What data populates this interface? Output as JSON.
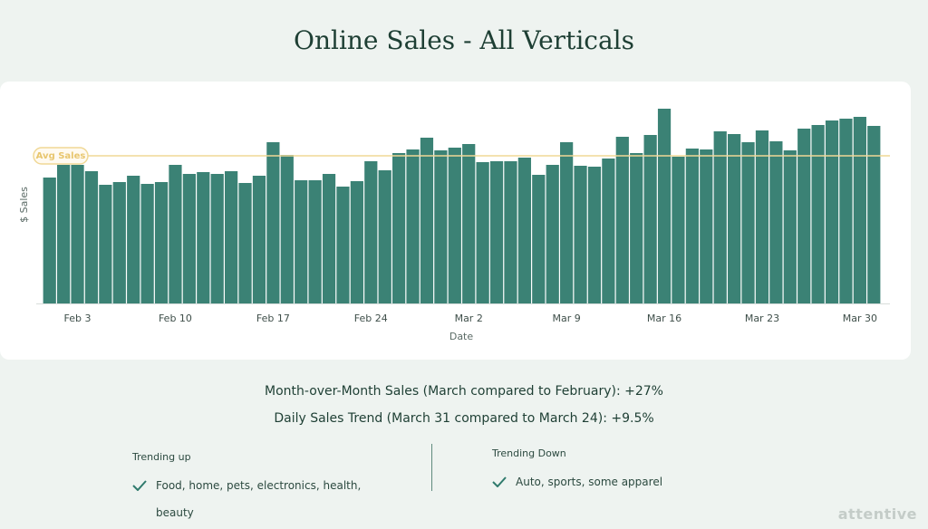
{
  "chart_data": {
    "type": "bar",
    "title": "Online Sales - All Verticals",
    "x_label": "Date",
    "y_label": "$ Sales",
    "color": "#3b8275",
    "categories": [
      null,
      null,
      "Feb 3",
      null,
      null,
      null,
      null,
      null,
      null,
      "Feb 10",
      null,
      null,
      null,
      null,
      null,
      null,
      "Feb 17",
      null,
      null,
      null,
      null,
      null,
      null,
      "Feb 24",
      null,
      null,
      null,
      null,
      null,
      null,
      "Mar 2",
      null,
      null,
      null,
      null,
      null,
      null,
      "Mar 9",
      null,
      null,
      null,
      null,
      null,
      null,
      "Mar 16",
      null,
      null,
      null,
      null,
      null,
      null,
      "Mar 23",
      null,
      null,
      null,
      null,
      null,
      null,
      "Mar 30",
      null
    ],
    "values": [
      139,
      153,
      153,
      146,
      131,
      134,
      141,
      132,
      134,
      153,
      143,
      145,
      143,
      146,
      133,
      141,
      178,
      164,
      136,
      136,
      143,
      129,
      135,
      157,
      147,
      166,
      170,
      183,
      169,
      172,
      176,
      156,
      157,
      157,
      161,
      142,
      153,
      178,
      152,
      151,
      160,
      184,
      166,
      186,
      215,
      162,
      171,
      170,
      190,
      187,
      178,
      191,
      179,
      169,
      193,
      197,
      202,
      204,
      206,
      196
    ],
    "ylim": [
      0,
      230
    ],
    "avg_line": {
      "label": "Avg Sales",
      "value": 163,
      "color": "#f0d896"
    }
  },
  "summary": {
    "lines": [
      "Month-over-Month Sales (March compared to February): +27%",
      "Daily Sales Trend (March 31 compared to March 24): +9.5%"
    ]
  },
  "trends": [
    {
      "heading": "Trending up",
      "items": [
        "Food, home, pets, electronics, health, beauty"
      ]
    },
    {
      "heading": "Trending Down",
      "items": [
        "Auto, sports, some apparel"
      ]
    }
  ],
  "brand": "attentive"
}
